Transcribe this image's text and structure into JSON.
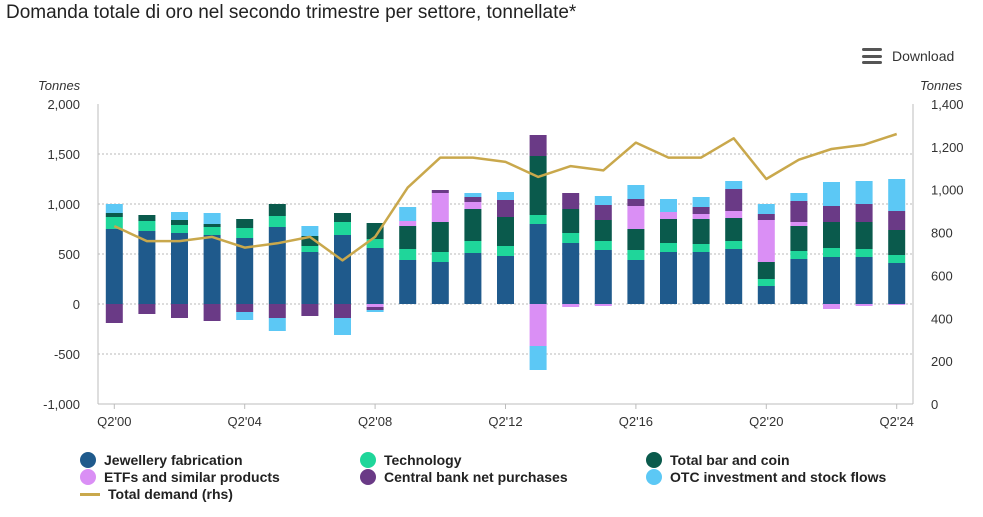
{
  "title": "Domanda totale di oro nel secondo trimestre per settore, tonnellate*",
  "toolbar": {
    "download_label": "Download",
    "download_icon": "menu-icon"
  },
  "chart_data": {
    "type": "bar",
    "stacked": true,
    "left_axis": {
      "label": "Tonnes",
      "min": -1000,
      "max": 2000,
      "ticks": [
        "2,000",
        "1,500",
        "1,000",
        "500",
        "0",
        "-500",
        "-1,000"
      ]
    },
    "right_axis": {
      "label": "Tonnes",
      "min": 0,
      "max": 1400,
      "ticks": [
        "1,400",
        "1,200",
        "1,000",
        "800",
        "600",
        "400",
        "200",
        "0"
      ]
    },
    "categories": [
      "Q2'00",
      "Q2'01",
      "Q2'02",
      "Q2'03",
      "Q2'04",
      "Q2'05",
      "Q2'06",
      "Q2'07",
      "Q2'08",
      "Q2'09",
      "Q2'10",
      "Q2'11",
      "Q2'12",
      "Q2'13",
      "Q2'14",
      "Q2'15",
      "Q2'16",
      "Q2'17",
      "Q2'18",
      "Q2'19",
      "Q2'20",
      "Q2'21",
      "Q2'22",
      "Q2'23",
      "Q2'24"
    ],
    "x_tick_labels": [
      "Q2'00",
      "Q2'04",
      "Q2'08",
      "Q2'12",
      "Q2'16",
      "Q2'20",
      "Q2'24"
    ],
    "series": [
      {
        "name": "Jewellery fabrication",
        "color": "#1f5a8c",
        "values": [
          750,
          730,
          710,
          690,
          660,
          770,
          520,
          690,
          560,
          440,
          420,
          510,
          480,
          800,
          610,
          540,
          440,
          520,
          520,
          550,
          180,
          450,
          470,
          470,
          410
        ]
      },
      {
        "name": "Technology",
        "color": "#1fd69a",
        "values": [
          120,
          100,
          80,
          80,
          100,
          110,
          60,
          130,
          90,
          110,
          100,
          120,
          100,
          90,
          100,
          90,
          100,
          90,
          80,
          80,
          70,
          80,
          90,
          80,
          80
        ]
      },
      {
        "name": "Total bar and coin",
        "color": "#0a5a4c",
        "values": [
          40,
          60,
          50,
          30,
          90,
          120,
          100,
          90,
          160,
          230,
          300,
          320,
          290,
          590,
          240,
          210,
          210,
          240,
          250,
          230,
          170,
          250,
          260,
          270,
          250
        ]
      },
      {
        "name": "ETFs and similar products",
        "color": "#da8ff5",
        "values": [
          0,
          0,
          0,
          0,
          0,
          0,
          0,
          0,
          -30,
          50,
          290,
          70,
          0,
          -420,
          -30,
          -20,
          230,
          70,
          50,
          70,
          420,
          40,
          -50,
          -20,
          -10
        ]
      },
      {
        "name": "Central bank net purchases",
        "color": "#6a3a86",
        "values": [
          -190,
          -100,
          -140,
          -170,
          -80,
          -140,
          -120,
          -140,
          -30,
          0,
          30,
          50,
          170,
          210,
          160,
          150,
          70,
          0,
          70,
          220,
          60,
          210,
          160,
          180,
          190
        ]
      },
      {
        "name": "OTC investment and stock flows",
        "color": "#5cc8f5",
        "values": [
          90,
          0,
          80,
          110,
          -80,
          -130,
          100,
          -170,
          -20,
          140,
          0,
          40,
          80,
          -240,
          0,
          90,
          140,
          130,
          100,
          80,
          100,
          80,
          240,
          230,
          320
        ]
      }
    ],
    "line": {
      "name": "Total demand (rhs)",
      "color": "#c9a84c",
      "values": [
        830,
        760,
        760,
        780,
        730,
        750,
        780,
        670,
        780,
        1010,
        1150,
        1150,
        1130,
        1060,
        1110,
        1090,
        1220,
        1150,
        1150,
        1240,
        1050,
        1140,
        1190,
        1210,
        1260
      ]
    }
  },
  "legend": [
    {
      "label": "Jewellery fabrication",
      "color": "#1f5a8c",
      "kind": "dot"
    },
    {
      "label": "Technology",
      "color": "#1fd69a",
      "kind": "dot"
    },
    {
      "label": "Total bar and coin",
      "color": "#0a5a4c",
      "kind": "dot"
    },
    {
      "label": "ETFs and similar products",
      "color": "#da8ff5",
      "kind": "dot"
    },
    {
      "label": "Central bank net purchases",
      "color": "#6a3a86",
      "kind": "dot"
    },
    {
      "label": "OTC investment and stock flows",
      "color": "#5cc8f5",
      "kind": "dot"
    },
    {
      "label": "Total demand (rhs)",
      "color": "#c9a84c",
      "kind": "line"
    }
  ]
}
